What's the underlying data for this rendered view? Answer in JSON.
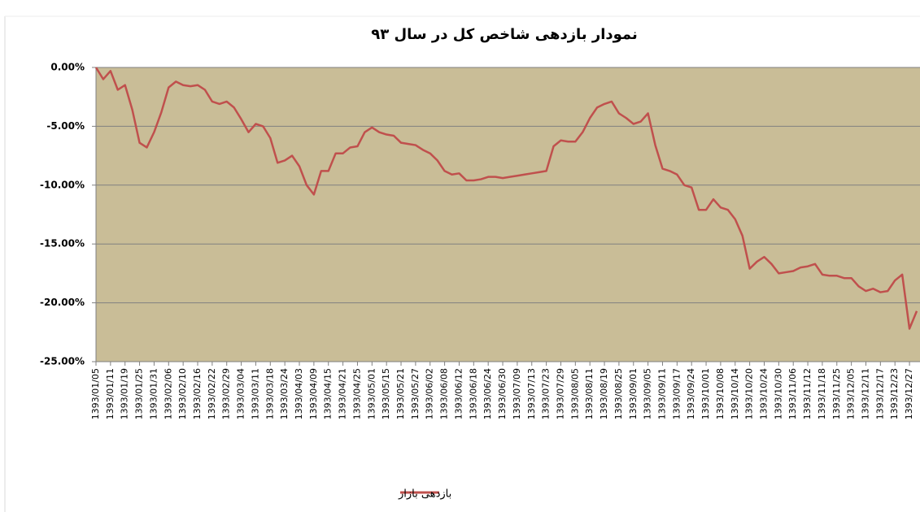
{
  "chart_data": {
    "type": "line",
    "title": "نمودار بازدهی شاخص کل در سال ۹۳",
    "categories": [
      "1393/01/05",
      null,
      "1393/01/11",
      null,
      "1393/01/19",
      null,
      "1393/01/25",
      null,
      "1393/01/31",
      null,
      "1393/02/06",
      null,
      "1393/02/10",
      null,
      "1393/02/16",
      null,
      "1393/02/22",
      null,
      "1393/02/29",
      null,
      "1393/03/04",
      null,
      "1393/03/11",
      null,
      "1393/03/18",
      null,
      "1393/03/24",
      null,
      "1393/04/03",
      null,
      "1393/04/09",
      null,
      "1393/04/15",
      null,
      "1393/04/21",
      null,
      "1393/04/25",
      null,
      "1393/05/01",
      null,
      "1393/05/15",
      null,
      "1393/05/21",
      null,
      "1393/05/27",
      null,
      "1393/06/02",
      null,
      "1393/06/08",
      null,
      "1393/06/12",
      null,
      "1393/06/18",
      null,
      "1393/06/24",
      null,
      "1393/06/30",
      null,
      "1393/07/09",
      null,
      "1393/07/13",
      null,
      "1393/07/23",
      null,
      "1393/07/29",
      null,
      "1393/08/05",
      null,
      "1393/08/11",
      null,
      "1393/08/19",
      null,
      "1393/08/25",
      null,
      "1393/09/01",
      null,
      "1393/09/05",
      null,
      "1393/09/11",
      null,
      "1393/09/17",
      null,
      "1393/09/24",
      null,
      "1393/10/01",
      null,
      "1393/10/08",
      null,
      "1393/10/14",
      null,
      "1393/10/20",
      null,
      "1393/10/24",
      null,
      "1393/10/30",
      null,
      "1393/11/06",
      null,
      "1393/11/12",
      null,
      "1393/11/18",
      null,
      "1393/11/25",
      null,
      "1393/12/05",
      null,
      "1393/12/11",
      null,
      "1393/12/17",
      null,
      "1393/12/23",
      null,
      "1393/12/27",
      null
    ],
    "series": [
      {
        "name": "بازدهی بازار",
        "color": "#c0504d",
        "values": [
          0,
          -1.0,
          -0.3,
          -1.9,
          -1.5,
          -3.6,
          -6.4,
          -6.8,
          -5.5,
          -3.8,
          -1.7,
          -1.2,
          -1.5,
          -1.6,
          -1.5,
          -1.9,
          -2.9,
          -3.1,
          -2.9,
          -3.4,
          -4.4,
          -5.5,
          -4.8,
          -5.0,
          -6.0,
          -8.1,
          -7.9,
          -7.5,
          -8.4,
          -10.0,
          -10.8,
          -8.8,
          -8.8,
          -7.3,
          -7.3,
          -6.8,
          -6.7,
          -5.5,
          -5.1,
          -5.5,
          -5.7,
          -5.8,
          -6.4,
          -6.5,
          -6.6,
          -7.0,
          -7.3,
          -7.9,
          -8.8,
          -9.1,
          -9.0,
          -9.6,
          -9.6,
          -9.5,
          -9.3,
          -9.3,
          -9.4,
          -9.3,
          -9.2,
          -9.1,
          -9.0,
          -8.9,
          -8.8,
          -6.7,
          -6.2,
          -6.3,
          -6.3,
          -5.5,
          -4.3,
          -3.4,
          -3.1,
          -2.9,
          -3.9,
          -4.3,
          -4.8,
          -4.6,
          -3.9,
          -6.6,
          -8.6,
          -8.8,
          -9.1,
          -10.0,
          -10.2,
          -12.1,
          -12.1,
          -11.2,
          -11.9,
          -12.1,
          -12.9,
          -14.3,
          -17.1,
          -16.5,
          -16.1,
          -16.7,
          -17.5,
          -17.4,
          -17.3,
          -17.0,
          -16.9,
          -16.7,
          -17.6,
          -17.7,
          -17.7,
          -17.9,
          -17.9,
          -18.6,
          -19.0,
          -18.8,
          -19.1,
          -19.0,
          -18.1,
          -17.6,
          -22.2,
          -20.7
        ]
      }
    ],
    "ylim": [
      -25,
      0
    ],
    "yticks": [
      {
        "value": 0,
        "label": "0.00%"
      },
      {
        "value": -5,
        "label": "-5.00%"
      },
      {
        "value": -10,
        "label": "-10.00%"
      },
      {
        "value": -15,
        "label": "-15.00%"
      },
      {
        "value": -20,
        "label": "-20.00%"
      },
      {
        "value": -25,
        "label": "-25.00%"
      }
    ],
    "grid": true,
    "plot_background": "#c9bd97",
    "legend": "bottom"
  }
}
